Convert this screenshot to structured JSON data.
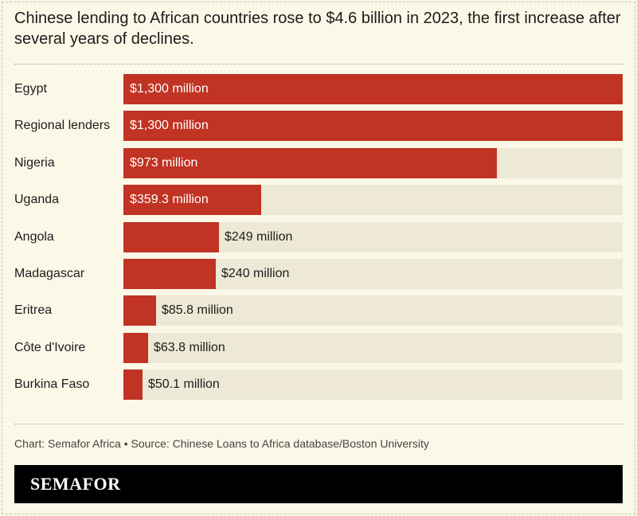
{
  "chart_data": {
    "type": "bar",
    "orientation": "horizontal",
    "title": "Chinese lending to African countries rose to $4.6 billion in 2023, the first increase after several years of declines.",
    "categories": [
      "Egypt",
      "Regional lenders",
      "Nigeria",
      "Uganda",
      "Angola",
      "Madagascar",
      "Eritrea",
      "Côte d'Ivoire",
      "Burkina Faso"
    ],
    "values": [
      1300,
      1300,
      973,
      359.3,
      249,
      240,
      85.8,
      63.8,
      50.1
    ],
    "value_labels": [
      "$1,300 million",
      "$1,300 million",
      "$973 million",
      "$359.3 million",
      "$249 million",
      "$240 million",
      "$85.8 million",
      "$63.8 million",
      "$50.1 million"
    ],
    "unit": "million USD",
    "xlim": [
      0,
      1300
    ],
    "grid": false,
    "colors": {
      "bar": "#c13323",
      "track": "#ede9d6"
    }
  },
  "source": "Chart: Semafor Africa • Source: Chinese Loans to Africa database/Boston University",
  "brand": "SEMAFOR"
}
